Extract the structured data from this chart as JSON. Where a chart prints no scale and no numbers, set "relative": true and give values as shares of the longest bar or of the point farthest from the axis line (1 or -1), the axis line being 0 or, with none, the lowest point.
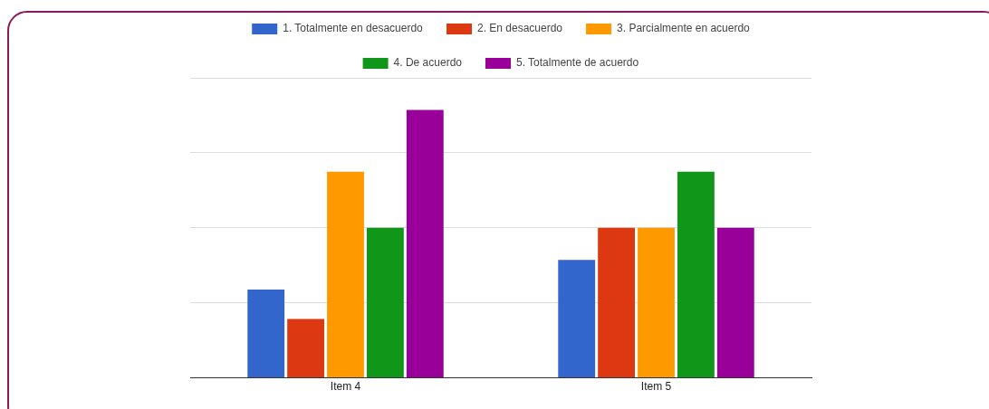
{
  "chart_data": {
    "type": "bar",
    "relative": true,
    "categories": [
      "Item 4",
      "Item 5"
    ],
    "series": [
      {
        "name": "1. Totalmente en desacuerdo",
        "color": "#3366cc",
        "values": [
          0.33,
          0.44
        ]
      },
      {
        "name": "2. En desacuerdo",
        "color": "#dc3912",
        "values": [
          0.22,
          0.56
        ]
      },
      {
        "name": "3. Parcialmente en acuerdo",
        "color": "#ff9900",
        "values": [
          0.77,
          0.56
        ]
      },
      {
        "name": "4. De acuerdo",
        "color": "#109618",
        "values": [
          0.56,
          0.77
        ]
      },
      {
        "name": "5. Totalmente de acuerdo",
        "color": "#990099",
        "values": [
          1,
          0.56
        ]
      }
    ],
    "grid": "y",
    "legend": "top"
  }
}
